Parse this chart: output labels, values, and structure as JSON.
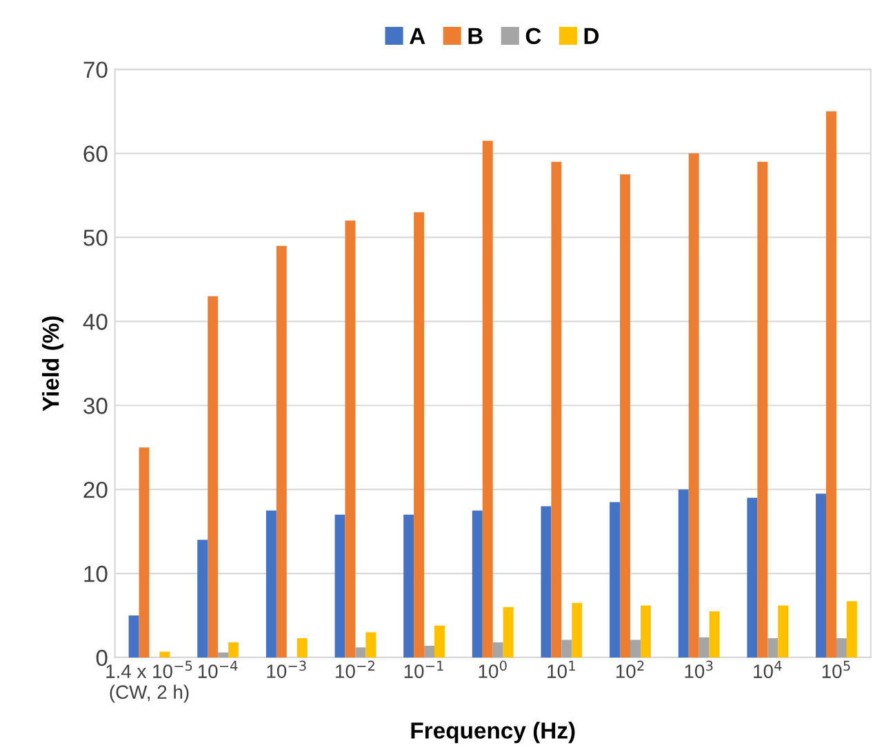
{
  "chart_data": {
    "type": "bar",
    "xlabel": "Frequency (Hz)",
    "ylabel": "Yield (%)",
    "categories": [
      "1.4 x 10$^{−5}$\n(CW, 2 h)",
      "10$^{−4}$",
      "10$^{−3}$",
      "10$^{−2}$",
      "10$^{−1}$",
      "10$^{0}$",
      "10$^{1}$",
      "10$^{2}$",
      "10$^{3}$",
      "10$^{4}$",
      "10$^{5}$"
    ],
    "series": [
      {
        "name": "A",
        "color": "#4472c4",
        "values": [
          5,
          14,
          17.5,
          17,
          17,
          17.5,
          18,
          18.5,
          20,
          19,
          19.5
        ]
      },
      {
        "name": "B",
        "color": "#ed7d31",
        "values": [
          25,
          43,
          49,
          52,
          53,
          61.5,
          59,
          57.5,
          60,
          59,
          65
        ]
      },
      {
        "name": "C",
        "color": "#a5a5a5",
        "values": [
          null,
          0.6,
          null,
          1.2,
          1.4,
          1.8,
          2.1,
          2.1,
          2.4,
          2.3,
          2.3
        ]
      },
      {
        "name": "D",
        "color": "#ffc000",
        "values": [
          0.7,
          1.8,
          2.3,
          3,
          3.8,
          6,
          6.5,
          6.2,
          5.5,
          6.2,
          6.7
        ]
      }
    ],
    "ylim": [
      0,
      70
    ],
    "yticks": [
      0,
      10,
      20,
      30,
      40,
      50,
      60,
      70
    ],
    "grid": "y",
    "legend": "top"
  }
}
